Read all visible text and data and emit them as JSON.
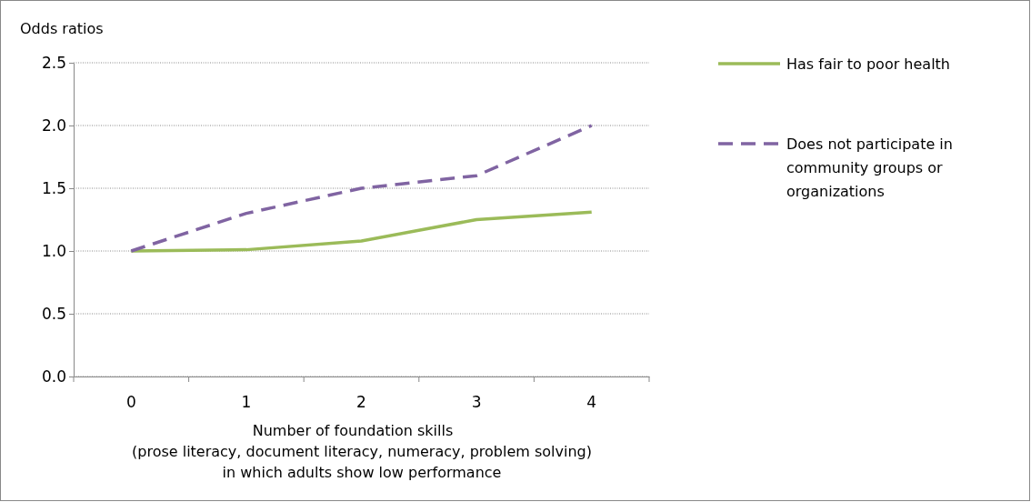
{
  "chart_data": {
    "type": "line",
    "ylabel": "Odds ratios",
    "xlabel": "Number of foundation skills\n(prose literacy, document literacy, numeracy, problem solving)\nin  which adults show low performance",
    "categories": [
      "0",
      "1",
      "2",
      "3",
      "4"
    ],
    "series": [
      {
        "name": "Has fair to poor health",
        "color": "#9bbb59",
        "line_style": "solid",
        "values": [
          1.0,
          1.01,
          1.08,
          1.25,
          1.31
        ]
      },
      {
        "name": "Does not participate in community groups or organizations",
        "color": "#8064a2",
        "line_style": "dashed",
        "values": [
          1.0,
          1.3,
          1.5,
          1.6,
          2.0
        ]
      }
    ],
    "ylim": [
      0,
      2.5
    ],
    "yticks": [
      {
        "value": 0,
        "label": "0.0"
      },
      {
        "value": 0.5,
        "label": "0.5"
      },
      {
        "value": 1,
        "label": "1.0"
      },
      {
        "value": 1.5,
        "label": "1.5"
      },
      {
        "value": 2,
        "label": "2.0"
      },
      {
        "value": 2.5,
        "label": "2.5"
      }
    ],
    "grid": "y",
    "legend": "right",
    "marker": "none"
  }
}
